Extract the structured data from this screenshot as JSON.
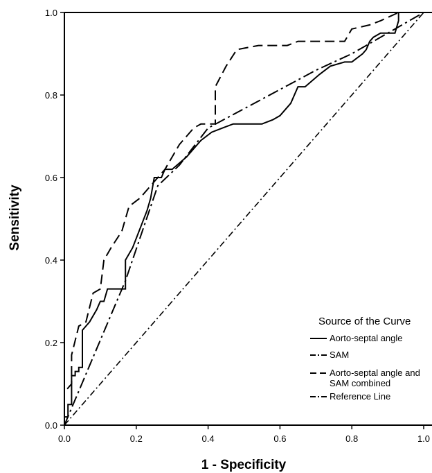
{
  "chart_data": {
    "type": "line",
    "xlabel": "1 - Specificity",
    "ylabel": "Sensitivity",
    "xlim": [
      0,
      1
    ],
    "ylim": [
      0,
      1
    ],
    "x_ticks": [
      "0.0",
      "0.2",
      "0.4",
      "0.6",
      "0.8",
      "1.0"
    ],
    "y_ticks": [
      "0.0",
      "0.2",
      "0.4",
      "0.6",
      "0.8",
      "1.0"
    ],
    "grid": false,
    "legend_position": "bottom-right",
    "legend_title": "Source of the Curve",
    "series": [
      {
        "name": "Aorto-septal angle",
        "style": "solid",
        "points": [
          [
            0.0,
            0.0
          ],
          [
            0.0,
            0.02
          ],
          [
            0.01,
            0.02
          ],
          [
            0.01,
            0.05
          ],
          [
            0.02,
            0.05
          ],
          [
            0.02,
            0.12
          ],
          [
            0.03,
            0.12
          ],
          [
            0.03,
            0.13
          ],
          [
            0.04,
            0.13
          ],
          [
            0.04,
            0.14
          ],
          [
            0.05,
            0.14
          ],
          [
            0.05,
            0.23
          ],
          [
            0.07,
            0.25
          ],
          [
            0.09,
            0.28
          ],
          [
            0.1,
            0.3
          ],
          [
            0.11,
            0.3
          ],
          [
            0.12,
            0.33
          ],
          [
            0.17,
            0.33
          ],
          [
            0.17,
            0.4
          ],
          [
            0.19,
            0.43
          ],
          [
            0.23,
            0.52
          ],
          [
            0.24,
            0.55
          ],
          [
            0.25,
            0.6
          ],
          [
            0.27,
            0.6
          ],
          [
            0.28,
            0.62
          ],
          [
            0.3,
            0.62
          ],
          [
            0.34,
            0.65
          ],
          [
            0.38,
            0.69
          ],
          [
            0.41,
            0.71
          ],
          [
            0.44,
            0.72
          ],
          [
            0.47,
            0.73
          ],
          [
            0.55,
            0.73
          ],
          [
            0.58,
            0.74
          ],
          [
            0.6,
            0.75
          ],
          [
            0.63,
            0.78
          ],
          [
            0.65,
            0.82
          ],
          [
            0.67,
            0.82
          ],
          [
            0.71,
            0.85
          ],
          [
            0.74,
            0.87
          ],
          [
            0.78,
            0.88
          ],
          [
            0.8,
            0.88
          ],
          [
            0.83,
            0.9
          ],
          [
            0.84,
            0.91
          ],
          [
            0.85,
            0.93
          ],
          [
            0.86,
            0.94
          ],
          [
            0.88,
            0.95
          ],
          [
            0.92,
            0.95
          ],
          [
            0.93,
            0.98
          ],
          [
            0.93,
            1.0
          ],
          [
            1.0,
            1.0
          ]
        ]
      },
      {
        "name": "SAM",
        "style": "dashdot",
        "points": [
          [
            0.0,
            0.0
          ],
          [
            0.17,
            0.35
          ],
          [
            0.26,
            0.58
          ],
          [
            0.32,
            0.63
          ],
          [
            0.4,
            0.72
          ],
          [
            0.7,
            0.86
          ],
          [
            0.8,
            0.9
          ],
          [
            1.0,
            1.0
          ]
        ]
      },
      {
        "name": "Aorto-septal angle and SAM combined",
        "style": "dashed",
        "points": [
          [
            0.0,
            0.02
          ],
          [
            0.0,
            0.08
          ],
          [
            0.02,
            0.1
          ],
          [
            0.02,
            0.17
          ],
          [
            0.04,
            0.24
          ],
          [
            0.06,
            0.25
          ],
          [
            0.08,
            0.32
          ],
          [
            0.1,
            0.33
          ],
          [
            0.11,
            0.4
          ],
          [
            0.13,
            0.43
          ],
          [
            0.16,
            0.47
          ],
          [
            0.18,
            0.53
          ],
          [
            0.21,
            0.55
          ],
          [
            0.24,
            0.58
          ],
          [
            0.26,
            0.6
          ],
          [
            0.28,
            0.62
          ],
          [
            0.3,
            0.65
          ],
          [
            0.32,
            0.68
          ],
          [
            0.34,
            0.7
          ],
          [
            0.36,
            0.72
          ],
          [
            0.38,
            0.73
          ],
          [
            0.42,
            0.73
          ],
          [
            0.42,
            0.82
          ],
          [
            0.45,
            0.87
          ],
          [
            0.48,
            0.91
          ],
          [
            0.54,
            0.92
          ],
          [
            0.62,
            0.92
          ],
          [
            0.65,
            0.93
          ],
          [
            0.78,
            0.93
          ],
          [
            0.8,
            0.96
          ],
          [
            0.85,
            0.97
          ],
          [
            0.88,
            0.98
          ],
          [
            0.93,
            1.0
          ],
          [
            1.0,
            1.0
          ]
        ]
      },
      {
        "name": "Reference Line",
        "style": "dashdot-fine",
        "points": [
          [
            0.0,
            0.0
          ],
          [
            1.0,
            1.0
          ]
        ]
      }
    ],
    "legend_items": [
      {
        "lines": [
          "Aorto-septal angle"
        ],
        "style": "solid"
      },
      {
        "lines": [
          "SAM"
        ],
        "style": "dashdot"
      },
      {
        "lines": [
          "Aorto-septal angle and",
          "SAM combined"
        ],
        "style": "dashed"
      },
      {
        "lines": [
          "Reference Line"
        ],
        "style": "dashdot-fine"
      }
    ]
  }
}
